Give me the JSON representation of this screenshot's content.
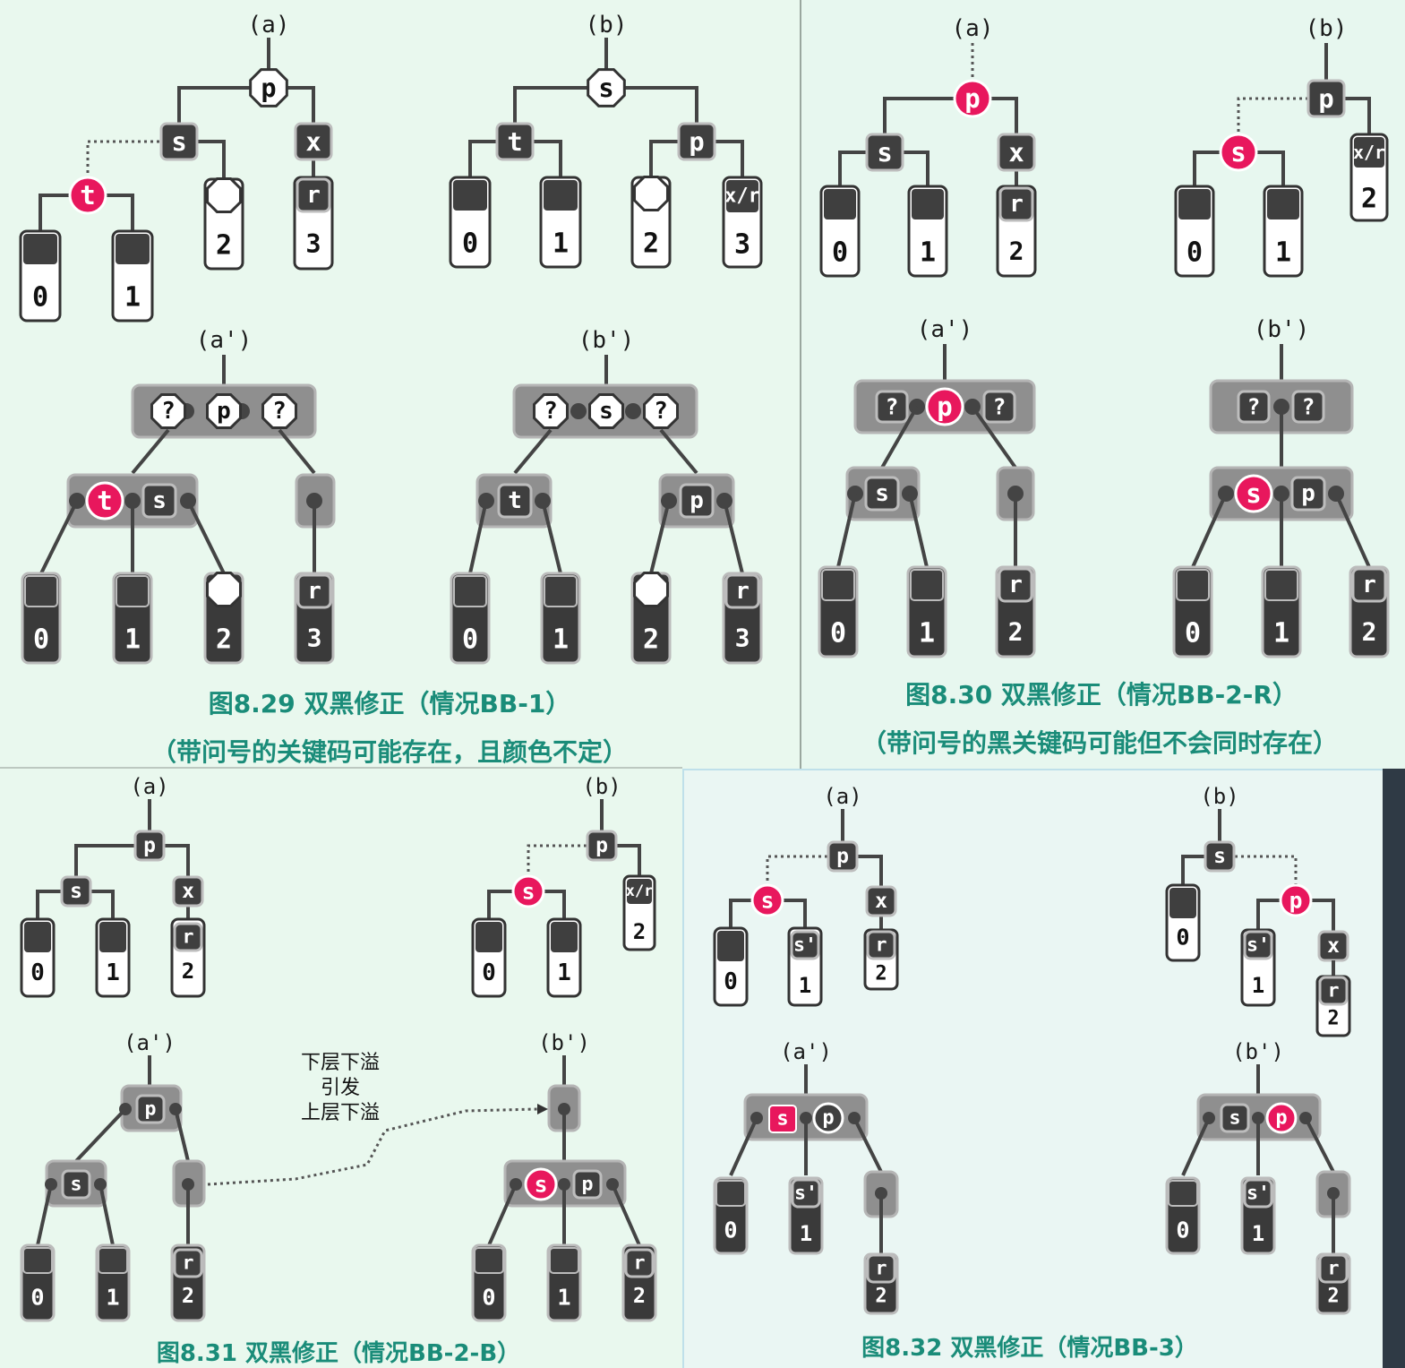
{
  "captions": {
    "fig_8_29_title": "图8.29  双黑修正（情况BB-1）",
    "fig_8_29_note": "（带问号的关键码可能存在，且颜色不定）",
    "fig_8_30_title": "图8.30  双黑修正（情况BB-2-R）",
    "fig_8_30_note": "（带问号的黑关键码可能但不会同时存在）",
    "fig_8_31_title": "图8.31  双黑修正（情况BB-2-B）",
    "fig_8_32_title": "图8.32  双黑修正（情况BB-3）"
  },
  "arrow_note": [
    "下层下溢",
    "引发",
    "上层下溢"
  ],
  "subfigure_labels": [
    "(a)",
    "(b)",
    "(a')",
    "(b')"
  ],
  "node_keys": [
    "p",
    "s",
    "t",
    "x",
    "r",
    "x/r",
    "s'",
    "?"
  ],
  "subtree_labels": [
    "0",
    "1",
    "2",
    "3"
  ],
  "colors": {
    "red_node": "#e8175d",
    "black_node": "#3f3f3f",
    "supernode": "#8f8f8f",
    "caption": "#1a8c79",
    "background": "#e9f8ee"
  }
}
